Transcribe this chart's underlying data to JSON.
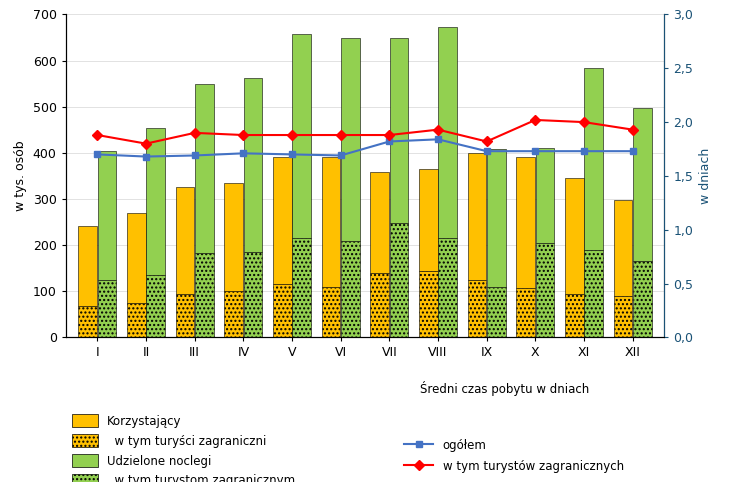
{
  "months": [
    "I",
    "II",
    "III",
    "IV",
    "V",
    "VI",
    "VII",
    "VIII",
    "IX",
    "X",
    "XI",
    "XII"
  ],
  "korzystajacy": [
    242,
    270,
    326,
    335,
    390,
    390,
    358,
    365,
    400,
    390,
    346,
    298
  ],
  "turyci_zagr": [
    68,
    75,
    95,
    100,
    115,
    110,
    140,
    145,
    125,
    108,
    95,
    90
  ],
  "udzielone_noclegi": [
    404,
    453,
    550,
    562,
    658,
    650,
    650,
    672,
    408,
    410,
    585,
    498
  ],
  "noclegi_zagr": [
    125,
    135,
    183,
    185,
    215,
    210,
    247,
    215,
    110,
    205,
    190,
    165
  ],
  "sredni_czas_ogol": [
    1.7,
    1.68,
    1.69,
    1.71,
    1.7,
    1.69,
    1.82,
    1.84,
    1.73,
    1.73,
    1.73,
    1.73
  ],
  "sredni_czas_zagr": [
    1.88,
    1.8,
    1.9,
    1.88,
    1.88,
    1.88,
    1.88,
    1.93,
    1.82,
    2.02,
    2.0,
    1.93
  ],
  "bar_width": 0.38,
  "ylim_left": [
    0,
    700
  ],
  "ylim_right": [
    0.0,
    3.0
  ],
  "yticks_left": [
    0,
    100,
    200,
    300,
    400,
    500,
    600,
    700
  ],
  "yticks_right": [
    0.0,
    0.5,
    1.0,
    1.5,
    2.0,
    2.5,
    3.0
  ],
  "color_korzystajacy": "#FFC000",
  "color_noclegi": "#92D050",
  "color_line_ogol": "#4472C4",
  "color_line_zagr": "#FF0000",
  "ylabel_left": "w tys. osób",
  "ylabel_right": "w dniach",
  "legend_korzystajacy": "Korzystający",
  "legend_turyci": "  w tym turyści zagraniczni",
  "legend_noclegi": "Udzielone noclegi",
  "legend_noclegi_zagr": "  w tym turystom zagranicznym",
  "legend_sredni_title": "Średni czas pobytu w dniach",
  "legend_ogol": "ogółem",
  "legend_zagr": "w tym turystów zagranicznych"
}
